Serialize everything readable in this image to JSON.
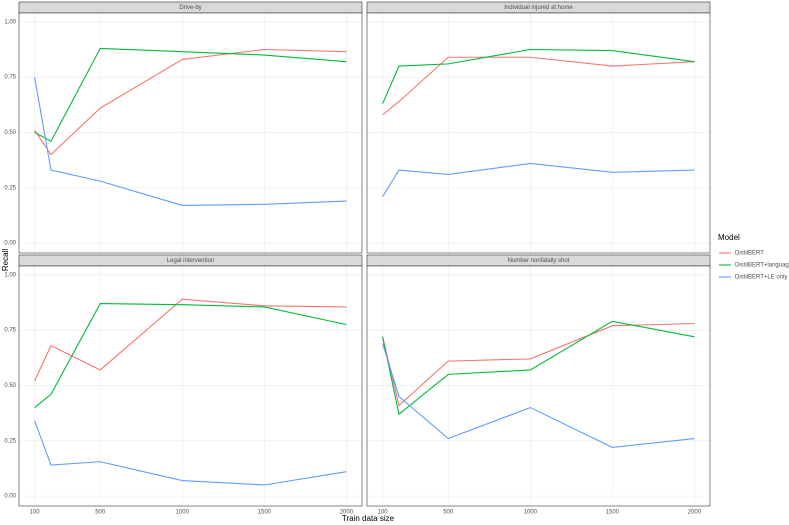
{
  "chart_data": {
    "type": "line",
    "x_label": "Train data size",
    "y_label": "Recall",
    "legend_title": "Model",
    "x": [
      100,
      200,
      500,
      1000,
      1500,
      2000
    ],
    "xlim": [
      5,
      2095
    ],
    "xticks": [
      100,
      500,
      1000,
      1500,
      2000
    ],
    "ylim": [
      -0.045,
      1.04
    ],
    "yticks": [
      {
        "value": 0,
        "label": "0.00"
      },
      {
        "value": 0.25,
        "label": "0.25"
      },
      {
        "value": 0.5,
        "label": "0.50"
      },
      {
        "value": 0.75,
        "label": "0.75"
      },
      {
        "value": 1,
        "label": "1.00"
      }
    ],
    "grid": true,
    "series": [
      {
        "name": "DistilBERT",
        "color": "#f8766d"
      },
      {
        "name": "DistilBERT+language",
        "color": "#00ba38"
      },
      {
        "name": "DistilBERT+LE only",
        "color": "#619cff"
      }
    ],
    "panels": [
      {
        "title": "Drive-by",
        "series": [
          {
            "values": [
              0.51,
              0.4,
              0.61,
              0.83,
              0.875,
              0.865
            ]
          },
          {
            "values": [
              0.5,
              0.46,
              0.88,
              0.865,
              0.85,
              0.82
            ]
          },
          {
            "values": [
              0.75,
              0.33,
              0.28,
              0.17,
              0.175,
              0.19
            ]
          }
        ]
      },
      {
        "title": "Individual injured at home",
        "series": [
          {
            "values": [
              0.58,
              0.64,
              0.84,
              0.84,
              0.8,
              0.82
            ]
          },
          {
            "values": [
              0.63,
              0.8,
              0.81,
              0.875,
              0.87,
              0.82
            ]
          },
          {
            "values": [
              0.21,
              0.33,
              0.31,
              0.36,
              0.32,
              0.33
            ]
          }
        ]
      },
      {
        "title": "Legal intervention",
        "series": [
          {
            "values": [
              0.52,
              0.68,
              0.57,
              0.89,
              0.86,
              0.855
            ]
          },
          {
            "values": [
              0.4,
              0.46,
              0.87,
              0.865,
              0.855,
              0.775
            ]
          },
          {
            "values": [
              0.34,
              0.14,
              0.155,
              0.07,
              0.05,
              0.11
            ]
          }
        ]
      },
      {
        "title": "Number nonfatally shot",
        "series": [
          {
            "values": [
              0.72,
              0.41,
              0.61,
              0.62,
              0.77,
              0.78
            ]
          },
          {
            "values": [
              0.72,
              0.37,
              0.55,
              0.57,
              0.79,
              0.72
            ]
          },
          {
            "values": [
              0.69,
              0.45,
              0.26,
              0.4,
              0.22,
              0.26
            ]
          }
        ]
      }
    ]
  }
}
